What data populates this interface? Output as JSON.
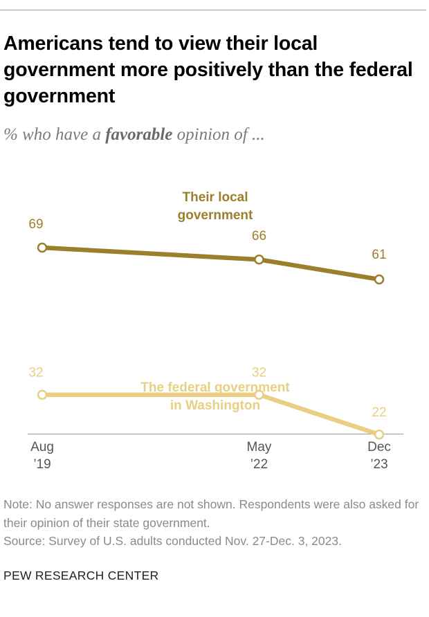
{
  "title": "Americans tend to view their local government more positively than the federal government",
  "subtitle": {
    "prefix": "% who have a ",
    "emphasis": "favorable",
    "suffix": " opinion of ..."
  },
  "colors": {
    "local": "#9c7f2a",
    "federal": "#e8cf84",
    "axis": "#999999",
    "tick_text": "#555555"
  },
  "chart_data": {
    "type": "line",
    "title": "Americans tend to view their local government more positively than the federal government",
    "subtitle": "% who have a favorable opinion of ...",
    "x": [
      "Aug '19",
      "May '22",
      "Dec '23"
    ],
    "x_tick_labels": [
      {
        "line1": "Aug",
        "line2": "’19"
      },
      {
        "line1": "May",
        "line2": "’22"
      },
      {
        "line1": "Dec",
        "line2": "’23"
      }
    ],
    "x_values": [
      2019.6,
      2022.4,
      2023.95
    ],
    "xlim": [
      2019.6,
      2023.95
    ],
    "ylim": [
      0,
      100
    ],
    "grid": false,
    "series": [
      {
        "name": "Their local government",
        "label_lines": [
          "Their local",
          "government"
        ],
        "values": [
          69,
          66,
          61
        ],
        "color": "#9c7f2a"
      },
      {
        "name": "The federal government in Washington",
        "label_lines": [
          "The federal government",
          "in Washington"
        ],
        "values": [
          32,
          32,
          22
        ],
        "color": "#e8cf84"
      }
    ]
  },
  "note": "Note: No answer responses are not shown. Respondents were also asked for their opinion of their state government.",
  "source": "Source: Survey of U.S. adults conducted Nov. 27-Dec. 3, 2023.",
  "brand": "PEW RESEARCH CENTER"
}
